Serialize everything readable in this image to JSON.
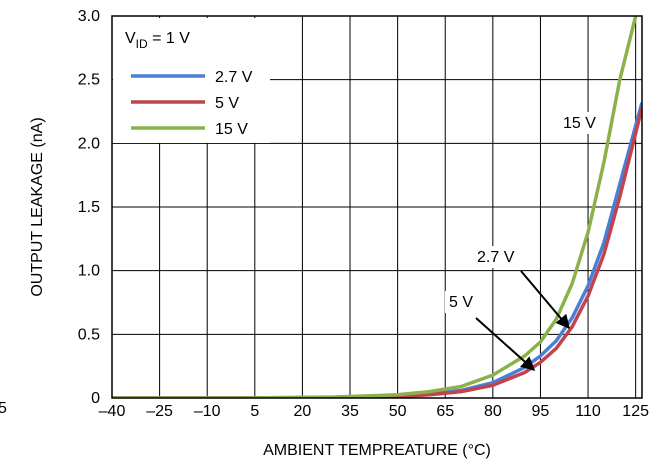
{
  "chart_data": {
    "type": "line",
    "xlabel": "AMBIENT TEMPREATURE (°C)",
    "ylabel": "OUTPUT LEAKAGE (nA)",
    "xlim": [
      -40,
      127
    ],
    "ylim": [
      0,
      3.0
    ],
    "x_ticks": [
      -40,
      -25,
      -10,
      5,
      20,
      35,
      50,
      65,
      80,
      95,
      110,
      125
    ],
    "x_tick_labels": [
      "–40",
      "–25",
      "–10",
      "5",
      "20",
      "35",
      "50",
      "65",
      "80",
      "95",
      "110",
      "125"
    ],
    "y_ticks": [
      0,
      0.5,
      1.0,
      1.5,
      2.0,
      2.5,
      3.0
    ],
    "y_tick_labels": [
      "0",
      "0.5",
      "1.0",
      "1.5",
      "2.0",
      "2.5",
      "3.0"
    ],
    "edge_label": "5",
    "grid": true,
    "legend": {
      "position": "top-left",
      "title_main": "V",
      "title_sub": "ID",
      "title_rest": " = 1 V"
    },
    "series": [
      {
        "name": "2.7 V",
        "color": "#4a7fd6",
        "x": [
          -40,
          0,
          30,
          50,
          60,
          70,
          80,
          90,
          95,
          100,
          105,
          110,
          115,
          120,
          127
        ],
        "y": [
          0,
          0,
          0.005,
          0.015,
          0.03,
          0.06,
          0.12,
          0.24,
          0.33,
          0.45,
          0.63,
          0.88,
          1.22,
          1.68,
          2.32
        ]
      },
      {
        "name": "5 V",
        "color": "#c0434e",
        "x": [
          -40,
          0,
          30,
          50,
          60,
          70,
          80,
          90,
          95,
          100,
          105,
          110,
          115,
          120,
          127
        ],
        "y": [
          0,
          0,
          0.004,
          0.012,
          0.025,
          0.05,
          0.1,
          0.2,
          0.28,
          0.39,
          0.56,
          0.8,
          1.13,
          1.58,
          2.28
        ]
      },
      {
        "name": "15 V",
        "color": "#8ab24a",
        "x": [
          -40,
          0,
          30,
          50,
          60,
          70,
          80,
          90,
          95,
          100,
          105,
          110,
          115,
          120,
          125
        ],
        "y": [
          0,
          0,
          0.008,
          0.025,
          0.05,
          0.09,
          0.18,
          0.33,
          0.44,
          0.62,
          0.9,
          1.3,
          1.85,
          2.5,
          3.0
        ]
      }
    ],
    "annotations": [
      {
        "text": "15 V",
        "series": "15 V"
      },
      {
        "text": "2.7 V",
        "series": "2.7 V",
        "arrow_to_x": 104,
        "arrow_to_y": 0.55
      },
      {
        "text": "5 V",
        "series": "5 V",
        "arrow_to_x": 93,
        "arrow_to_y": 0.22
      }
    ]
  }
}
